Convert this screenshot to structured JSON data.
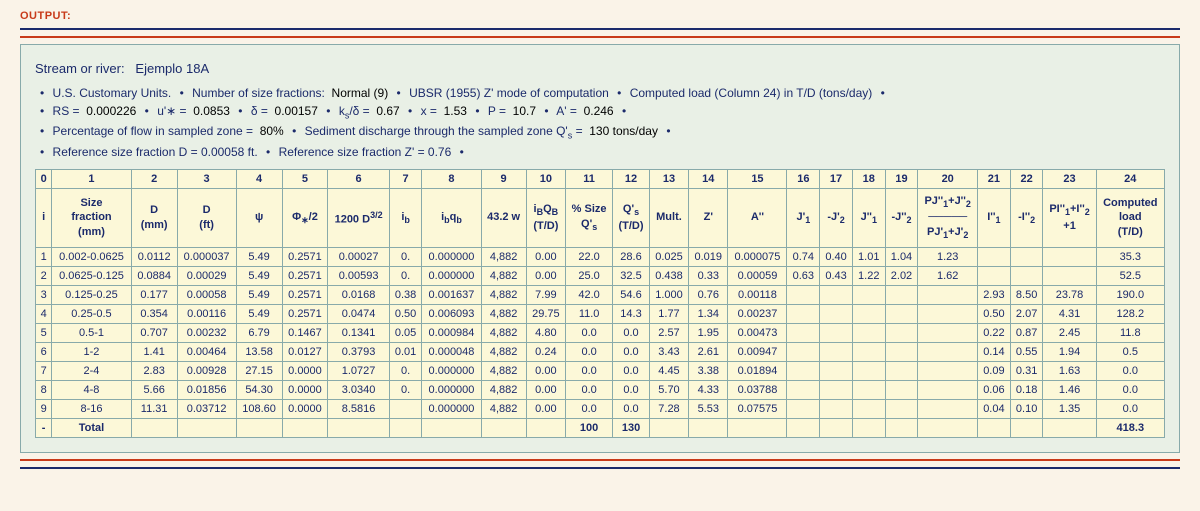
{
  "topLabel": "OUTPUT:",
  "streamLabel": "Stream or river:",
  "streamName": "Ejemplo 18A",
  "param_lines": [
    [
      {
        "t": "U.S. Customary Units."
      },
      {
        "t": "Number of size fractions:",
        "v": "Normal (9)"
      },
      {
        "t": "UBSR (1955) Z' mode of computation"
      },
      {
        "t": "Computed load (Column 24) in T/D (tons/day)"
      }
    ],
    [
      {
        "t": "RS =",
        "v": "0.000226"
      },
      {
        "t": "u'∗ =",
        "v": "0.0853"
      },
      {
        "t": "δ =",
        "v": "0.00157"
      },
      {
        "t": "k<sub>s</sub>/δ =",
        "v": "0.67"
      },
      {
        "t": "x =",
        "v": "1.53"
      },
      {
        "t": "P =",
        "v": "10.7"
      },
      {
        "t": "A' =",
        "v": "0.246"
      }
    ],
    [
      {
        "t": "Percentage of flow in sampled zone =",
        "v": "80%"
      },
      {
        "t": "Sediment discharge through the sampled zone Q'<sub>s</sub> =",
        "v": "130 tons/day"
      }
    ],
    [
      {
        "t": "Reference size fraction D = 0.00058 ft."
      },
      {
        "t": "Reference size fraction Z' = 0.76"
      }
    ]
  ],
  "col_nums": [
    "0",
    "1",
    "2",
    "3",
    "4",
    "5",
    "6",
    "7",
    "8",
    "9",
    "10",
    "11",
    "12",
    "13",
    "14",
    "15",
    "16",
    "17",
    "18",
    "19",
    "20",
    "21",
    "22",
    "23",
    "24"
  ],
  "headers": [
    "i",
    "Size<br>fraction<br>(mm)",
    "D<br>(mm)",
    "D<br>(ft)",
    "ψ",
    "Φ<sub>∗</sub>/2",
    "1200 D<sup>3/2</sup>",
    "i<sub>b</sub>",
    "i<sub>b</sub>q<sub>b</sub>",
    "43.2 w",
    "i<sub>B</sub>Q<sub>B</sub><br>(T/D)",
    "% Size<br>Q'<sub>s</sub>",
    "Q'<sub>s</sub><br>(T/D)",
    "Mult.",
    "Z'",
    "A''",
    "J'<sub>1</sub>",
    "-J'<sub>2</sub>",
    "J''<sub>1</sub>",
    "-J''<sub>2</sub>",
    "PJ''<sub>1</sub>+J''<sub>2</sub><br>─────<br>PJ'<sub>1</sub>+J'<sub>2</sub>",
    "I''<sub>1</sub>",
    "-I''<sub>2</sub>",
    "PI''<sub>1</sub>+I''<sub>2</sub><br>+1",
    "Computed<br>load<br>(T/D)"
  ],
  "rows": [
    [
      "1",
      "0.002-0.0625",
      "0.0112",
      "0.000037",
      "5.49",
      "0.2571",
      "0.00027",
      "0.",
      "0.000000",
      "4,882",
      "0.00",
      "22.0",
      "28.6",
      "0.025",
      "0.019",
      "0.000075",
      "0.74",
      "0.40",
      "1.01",
      "1.04",
      "1.23",
      "",
      "",
      "",
      "35.3"
    ],
    [
      "2",
      "0.0625-0.125",
      "0.0884",
      "0.00029",
      "5.49",
      "0.2571",
      "0.00593",
      "0.",
      "0.000000",
      "4,882",
      "0.00",
      "25.0",
      "32.5",
      "0.438",
      "0.33",
      "0.00059",
      "0.63",
      "0.43",
      "1.22",
      "2.02",
      "1.62",
      "",
      "",
      "",
      "52.5"
    ],
    [
      "3",
      "0.125-0.25",
      "0.177",
      "0.00058",
      "5.49",
      "0.2571",
      "0.0168",
      "0.38",
      "0.001637",
      "4,882",
      "7.99",
      "42.0",
      "54.6",
      "1.000",
      "0.76",
      "0.00118",
      "",
      "",
      "",
      "",
      "",
      "2.93",
      "8.50",
      "23.78",
      "190.0"
    ],
    [
      "4",
      "0.25-0.5",
      "0.354",
      "0.00116",
      "5.49",
      "0.2571",
      "0.0474",
      "0.50",
      "0.006093",
      "4,882",
      "29.75",
      "11.0",
      "14.3",
      "1.77",
      "1.34",
      "0.00237",
      "",
      "",
      "",
      "",
      "",
      "0.50",
      "2.07",
      "4.31",
      "128.2"
    ],
    [
      "5",
      "0.5-1",
      "0.707",
      "0.00232",
      "6.79",
      "0.1467",
      "0.1341",
      "0.05",
      "0.000984",
      "4,882",
      "4.80",
      "0.0",
      "0.0",
      "2.57",
      "1.95",
      "0.00473",
      "",
      "",
      "",
      "",
      "",
      "0.22",
      "0.87",
      "2.45",
      "11.8"
    ],
    [
      "6",
      "1-2",
      "1.41",
      "0.00464",
      "13.58",
      "0.0127",
      "0.3793",
      "0.01",
      "0.000048",
      "4,882",
      "0.24",
      "0.0",
      "0.0",
      "3.43",
      "2.61",
      "0.00947",
      "",
      "",
      "",
      "",
      "",
      "0.14",
      "0.55",
      "1.94",
      "0.5"
    ],
    [
      "7",
      "2-4",
      "2.83",
      "0.00928",
      "27.15",
      "0.0000",
      "1.0727",
      "0.",
      "0.000000",
      "4,882",
      "0.00",
      "0.0",
      "0.0",
      "4.45",
      "3.38",
      "0.01894",
      "",
      "",
      "",
      "",
      "",
      "0.09",
      "0.31",
      "1.63",
      "0.0"
    ],
    [
      "8",
      "4-8",
      "5.66",
      "0.01856",
      "54.30",
      "0.0000",
      "3.0340",
      "0.",
      "0.000000",
      "4,882",
      "0.00",
      "0.0",
      "0.0",
      "5.70",
      "4.33",
      "0.03788",
      "",
      "",
      "",
      "",
      "",
      "0.06",
      "0.18",
      "1.46",
      "0.0"
    ],
    [
      "9",
      "8-16",
      "11.31",
      "0.03712",
      "108.60",
      "0.0000",
      "8.5816",
      "",
      "0.000000",
      "4,882",
      "0.00",
      "0.0",
      "0.0",
      "7.28",
      "5.53",
      "0.07575",
      "",
      "",
      "",
      "",
      "",
      "0.04",
      "0.10",
      "1.35",
      "0.0"
    ]
  ],
  "total_row": [
    "-",
    "Total",
    "",
    "",
    "",
    "",
    "",
    "",
    "",
    "",
    "",
    "100",
    "130",
    "",
    "",
    "",
    "",
    "",
    "",
    "",
    "",
    "",
    "",
    "",
    "418.3"
  ]
}
